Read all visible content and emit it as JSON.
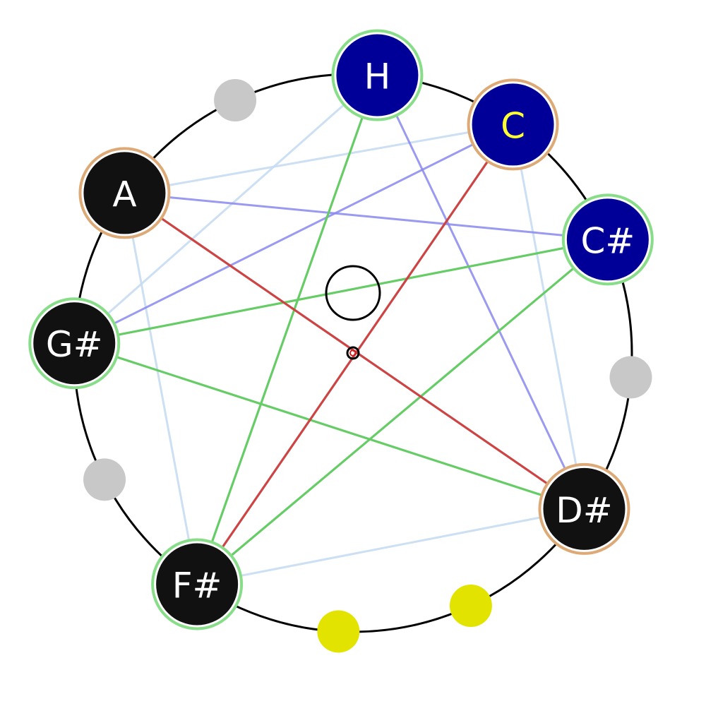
{
  "colors": {
    "circle": "#000000",
    "inactive_dot": "#c8c8c8",
    "highlight_dot": "#e3e300",
    "node_dark": "#111111",
    "node_blue": "#000099",
    "label_white": "#ffffff",
    "label_yellow": "#ffff33",
    "ring_green": "#88dd88",
    "ring_tan": "#ddaa77",
    "edge_green": "#66cc66",
    "edge_red": "#cc4444",
    "edge_blue": "#8888ee",
    "edge_lightblue": "#c6dcf2",
    "center_marker": "#000000",
    "center_point": "#cc2222"
  },
  "nodes": [
    {
      "id": "H",
      "label": "H",
      "fill": "node_blue",
      "label_color": "label_white",
      "ring": "ring_green"
    },
    {
      "id": "C",
      "label": "C",
      "fill": "node_blue",
      "label_color": "label_yellow",
      "ring": "ring_tan"
    },
    {
      "id": "Cs",
      "label": "C#",
      "fill": "node_blue",
      "label_color": "label_white",
      "ring": "ring_green"
    },
    {
      "id": "Ds",
      "label": "D#",
      "fill": "node_dark",
      "label_color": "label_white",
      "ring": "ring_tan"
    },
    {
      "id": "Fs",
      "label": "F#",
      "fill": "node_dark",
      "label_color": "label_white",
      "ring": "ring_green"
    },
    {
      "id": "Gs",
      "label": "G#",
      "fill": "node_dark",
      "label_color": "label_white",
      "ring": "ring_green"
    },
    {
      "id": "A",
      "label": "A",
      "fill": "node_dark",
      "label_color": "label_white",
      "ring": "ring_tan"
    }
  ],
  "empty_positions": [
    {
      "id": "Bb",
      "color": "inactive_dot"
    },
    {
      "id": "D",
      "color": "inactive_dot"
    },
    {
      "id": "E",
      "color": "highlight_dot"
    },
    {
      "id": "F",
      "color": "highlight_dot"
    },
    {
      "id": "G",
      "color": "inactive_dot"
    }
  ],
  "edges": [
    {
      "from": "A",
      "to": "Ds",
      "style": "edge_red"
    },
    {
      "from": "C",
      "to": "Fs",
      "style": "edge_red"
    },
    {
      "from": "H",
      "to": "Fs",
      "style": "edge_green"
    },
    {
      "from": "Cs",
      "to": "Gs",
      "style": "edge_green"
    },
    {
      "from": "Cs",
      "to": "Fs",
      "style": "edge_green"
    },
    {
      "from": "Gs",
      "to": "Ds",
      "style": "edge_green"
    },
    {
      "from": "A",
      "to": "Cs",
      "style": "edge_blue"
    },
    {
      "from": "C",
      "to": "Gs",
      "style": "edge_blue"
    },
    {
      "from": "H",
      "to": "Ds",
      "style": "edge_blue"
    },
    {
      "from": "A",
      "to": "C",
      "style": "edge_lightblue"
    },
    {
      "from": "H",
      "to": "Gs",
      "style": "edge_lightblue"
    },
    {
      "from": "C",
      "to": "Ds",
      "style": "edge_lightblue"
    },
    {
      "from": "A",
      "to": "Fs",
      "style": "edge_lightblue"
    },
    {
      "from": "Fs",
      "to": "Ds",
      "style": "edge_lightblue"
    }
  ]
}
